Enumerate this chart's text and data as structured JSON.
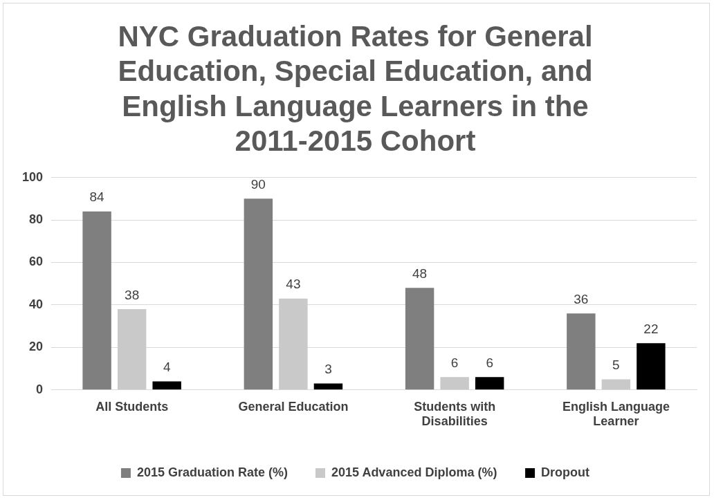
{
  "chart_data": {
    "type": "bar",
    "title": "NYC Graduation Rates for General Education, Special Education, and English Language Learners in the 2011-2015 Cohort",
    "categories": [
      "All Students",
      "General Education",
      "Students with Disabilities",
      "English Language Learner"
    ],
    "series": [
      {
        "name": "2015 Graduation Rate (%)",
        "color": "#7f7f7f",
        "values": [
          84,
          90,
          48,
          36
        ]
      },
      {
        "name": "2015 Advanced Diploma (%)",
        "color": "#c9c9c9",
        "values": [
          38,
          43,
          6,
          5
        ]
      },
      {
        "name": "Dropout",
        "color": "#000000",
        "values": [
          4,
          3,
          6,
          22
        ]
      }
    ],
    "ylim": [
      0,
      100
    ],
    "yticks": [
      0,
      20,
      40,
      60,
      80,
      100
    ],
    "grid": "y",
    "legend": "bottom",
    "data_labels": true
  }
}
